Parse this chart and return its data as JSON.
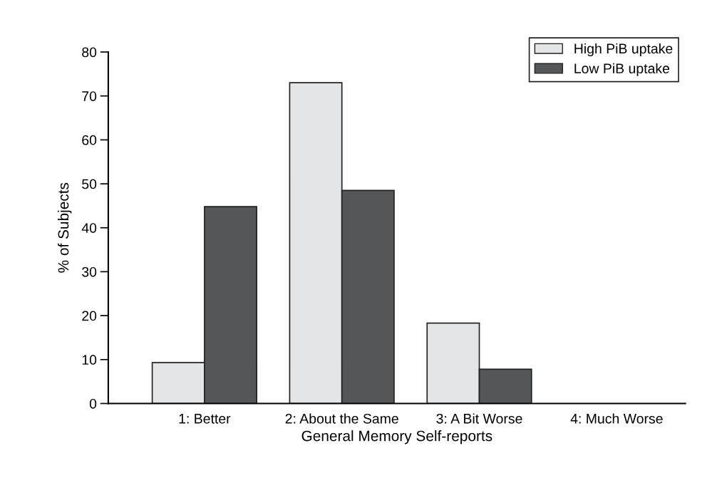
{
  "chart_data": {
    "type": "bar",
    "xlabel": "General Memory Self-reports",
    "ylabel": "% of Subjects",
    "categories": [
      "1: Better",
      "2: About the Same",
      "3: A Bit Worse",
      "4: Much Worse"
    ],
    "series": [
      {
        "name": "High PiB uptake",
        "color": "#e4e5e7",
        "values": [
          9.3,
          73.0,
          18.3,
          0
        ]
      },
      {
        "name": "Low PiB uptake",
        "color": "#555658",
        "values": [
          44.8,
          48.5,
          7.8,
          0
        ]
      }
    ],
    "ylim": [
      0,
      80
    ],
    "yticks": [
      0,
      10,
      20,
      30,
      40,
      50,
      60,
      70,
      80
    ],
    "grid": false,
    "legend": "top right"
  }
}
